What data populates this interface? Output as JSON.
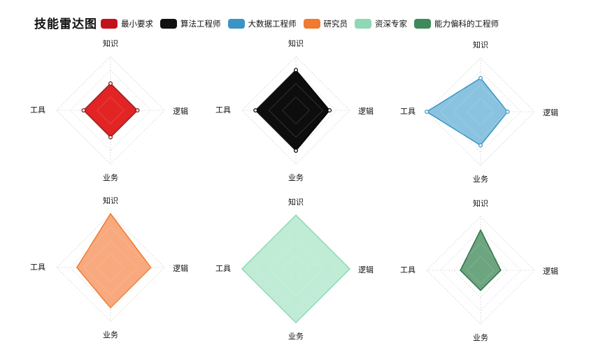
{
  "title": "技能雷达图",
  "legend": [
    {
      "name": "最小要求",
      "color": "#c4121a"
    },
    {
      "name": "算法工程师",
      "color": "#111111"
    },
    {
      "name": "大数据工程师",
      "color": "#3a95c4"
    },
    {
      "name": "研究员",
      "color": "#f07a30"
    },
    {
      "name": "资深专家",
      "color": "#8ed8b5"
    },
    {
      "name": "能力偏科的工程师",
      "color": "#3f8a5c"
    }
  ],
  "chart_data": [
    {
      "type": "radar",
      "name": "最小要求",
      "color": "#c4121a",
      "fill": "#e01818",
      "fill_opacity": 0.95,
      "stroke": "#8a0a0a",
      "axes": [
        "知识",
        "逻辑",
        "业务",
        "工具"
      ],
      "values": [
        2,
        2,
        2,
        2
      ],
      "max": 4,
      "rings": 4,
      "point_marker": true
    },
    {
      "type": "radar",
      "name": "算法工程师",
      "color": "#111111",
      "fill": "#000000",
      "fill_opacity": 0.95,
      "stroke": "#000000",
      "axes": [
        "知识",
        "逻辑",
        "业务",
        "工具"
      ],
      "values": [
        3,
        2.5,
        3,
        3
      ],
      "max": 4,
      "rings": 4,
      "point_marker": true
    },
    {
      "type": "radar",
      "name": "大数据工程师",
      "color": "#3a95c4",
      "fill": "#76b9db",
      "fill_opacity": 0.85,
      "stroke": "#3a95c4",
      "axes": [
        "知识",
        "逻辑",
        "业务",
        "工具"
      ],
      "values": [
        2.5,
        2,
        2.5,
        4
      ],
      "max": 4,
      "rings": 4,
      "point_marker": true
    },
    {
      "type": "radar",
      "name": "研究员",
      "color": "#f07a30",
      "fill": "#f7a070",
      "fill_opacity": 0.9,
      "stroke": "#f07a30",
      "axes": [
        "知识",
        "逻辑",
        "业务",
        "工具"
      ],
      "values": [
        4,
        3,
        3,
        2.5
      ],
      "max": 4,
      "rings": 4,
      "point_marker": false
    },
    {
      "type": "radar",
      "name": "资深专家",
      "color": "#8ed8b5",
      "fill": "#b9ead0",
      "fill_opacity": 0.9,
      "stroke": "#8ed8b5",
      "axes": [
        "知识",
        "逻辑",
        "业务",
        "工具"
      ],
      "values": [
        4,
        4,
        4,
        4
      ],
      "max": 4,
      "rings": 4,
      "point_marker": false
    },
    {
      "type": "radar",
      "name": "能力偏科的工程师",
      "color": "#3f8a5c",
      "fill": "#5c9b72",
      "fill_opacity": 0.9,
      "stroke": "#2f6f48",
      "axes": [
        "知识",
        "逻辑",
        "业务",
        "工具"
      ],
      "values": [
        3,
        1.5,
        1.5,
        1.5
      ],
      "max": 4,
      "rings": 4,
      "point_marker": false
    }
  ]
}
